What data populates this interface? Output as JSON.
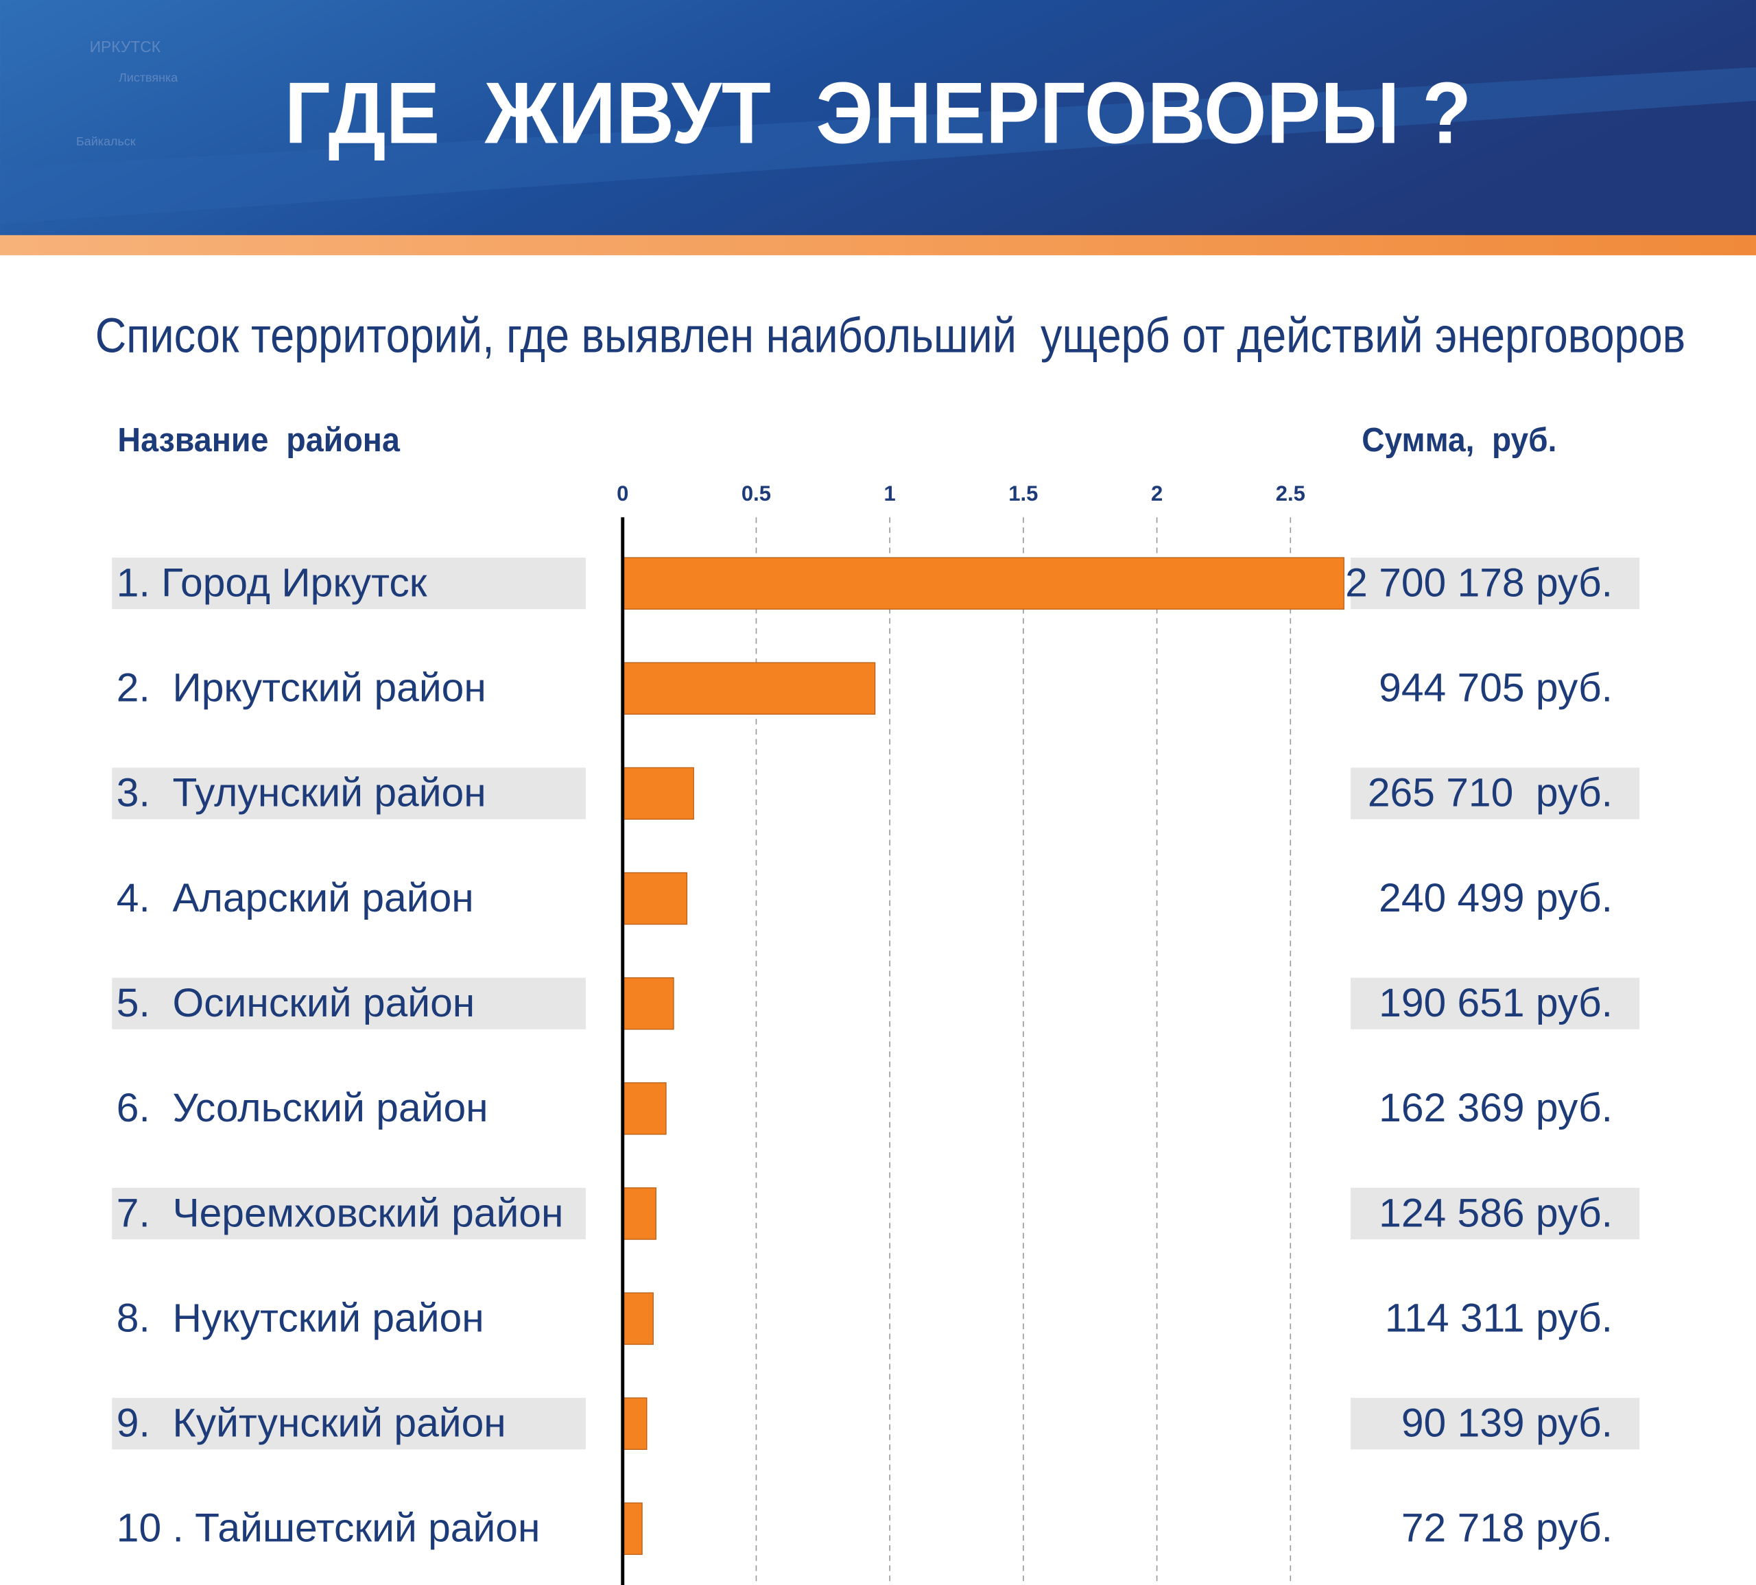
{
  "header": {
    "title": "ГДЕ  ЖИВУТ  ЭНЕРГОВОРЫ ?",
    "map_labels": [
      "ИРКУТСК",
      "Листвянка",
      "Байкальск"
    ]
  },
  "chart_data": {
    "type": "bar",
    "orientation": "horizontal",
    "subtitle": "Список территорий, где выявлен наибольший  ущерб от действий энерговоров",
    "category_header": "Название  района",
    "value_header": "Сумма,  руб.",
    "categories": [
      "1. Город Иркутск",
      "2.  Иркутский район",
      "3.  Тулунский район",
      "4.  Аларский район",
      "5.  Осинский район",
      "6.  Усольский район",
      "7.  Черемховский район",
      "8.  Нукутский район",
      "9.  Куйтунский район",
      "10 . Тайшетский район"
    ],
    "values": [
      2.700178,
      0.944705,
      0.26571,
      0.240499,
      0.190651,
      0.162369,
      0.124586,
      0.114311,
      0.090139,
      0.072718
    ],
    "value_labels": [
      "2 700 178 руб.",
      "944 705 руб.",
      "265 710  руб.",
      "240 499 руб.",
      "190 651 руб.",
      "162 369 руб.",
      "124 586 руб.",
      "114 311 руб.",
      "90 139 руб.",
      "72 718 руб."
    ],
    "color": "#f58220",
    "xlim": [
      0,
      2.7
    ],
    "xticks": [
      0,
      0.5,
      1,
      1.5,
      2,
      2.5
    ],
    "grid": true
  }
}
